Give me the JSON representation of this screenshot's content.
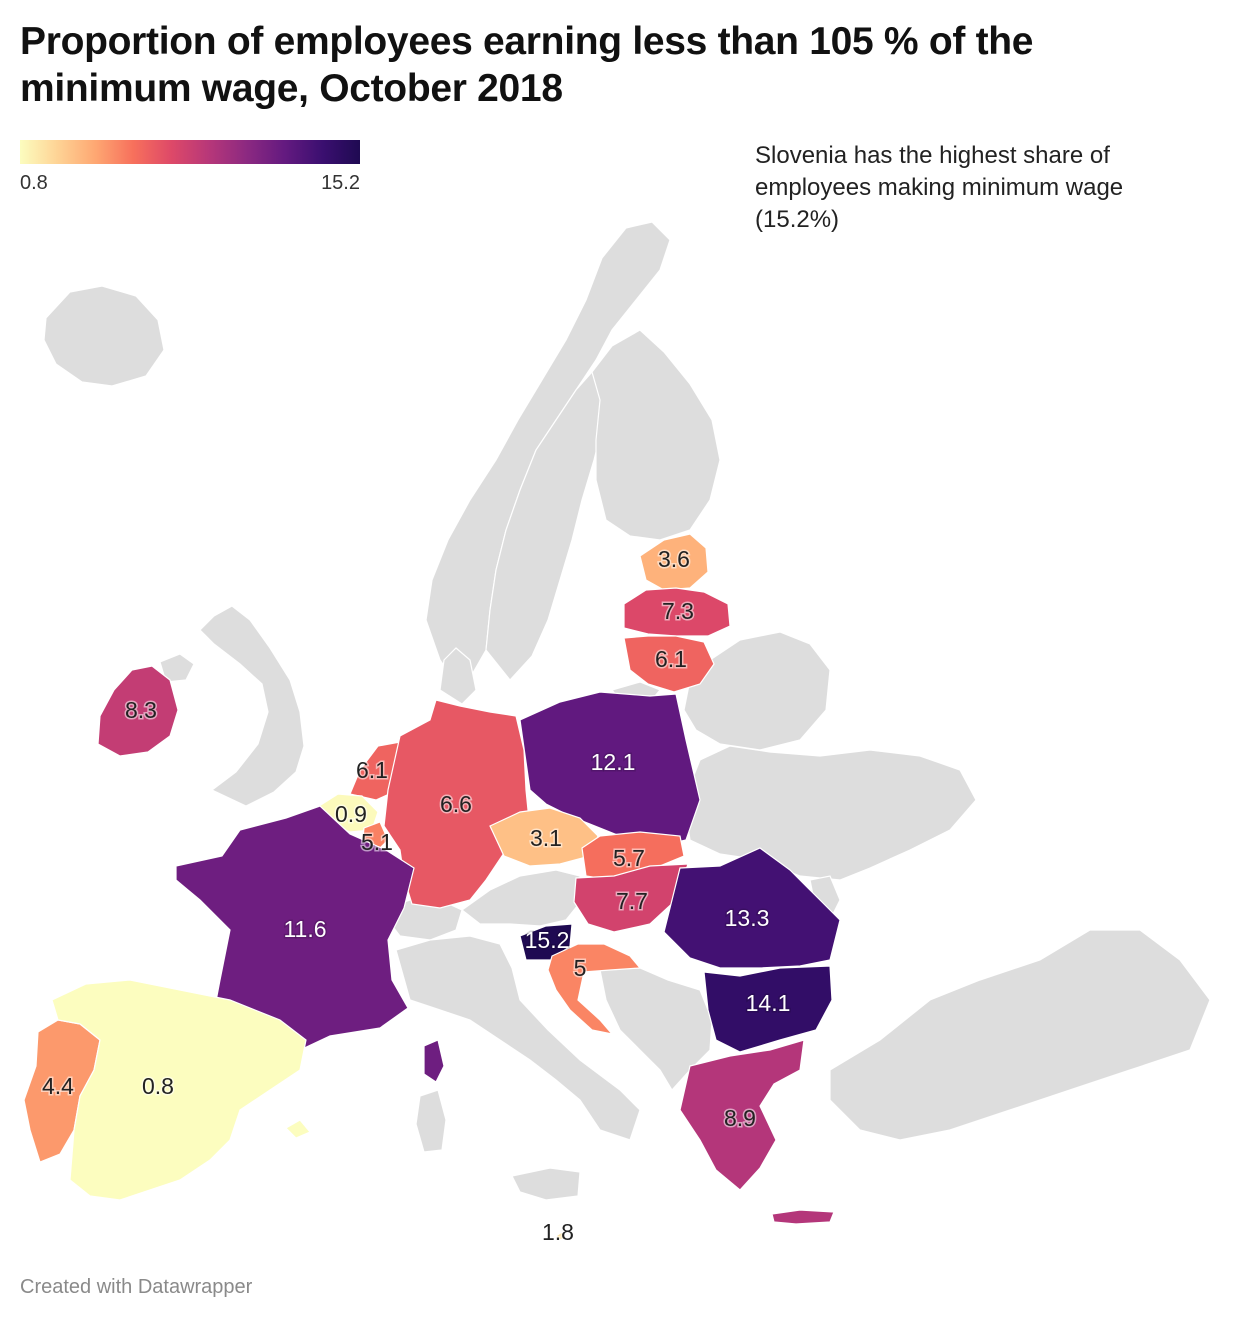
{
  "title": "Proportion of employees earning less than 105 % of the minimum wage, October 2018",
  "legend": {
    "min_label": "0.8",
    "max_label": "15.2",
    "colors": [
      "#fcfdbf",
      "#fed395",
      "#fea772",
      "#f7705c",
      "#de4968",
      "#b73779",
      "#8c2981",
      "#641a80",
      "#3b0f70",
      "#1f0a52"
    ]
  },
  "annotation": "Slovenia has the highest share of employees making minimum wage (15.2%)",
  "credit": "Created with Datawrapper",
  "no_data_color": "#dddddd",
  "countries": [
    {
      "key": "estonia",
      "name": "Estonia",
      "value": 3.6
    },
    {
      "key": "latvia",
      "name": "Latvia",
      "value": 7.3
    },
    {
      "key": "lithuania",
      "name": "Lithuania",
      "value": 6.1
    },
    {
      "key": "ireland",
      "name": "Ireland",
      "value": 8.3
    },
    {
      "key": "netherlands",
      "name": "Netherlands",
      "value": 6.1
    },
    {
      "key": "germany",
      "name": "Germany",
      "value": 6.6
    },
    {
      "key": "poland",
      "name": "Poland",
      "value": 12.1
    },
    {
      "key": "belgium",
      "name": "Belgium",
      "value": 0.9
    },
    {
      "key": "luxembourg",
      "name": "Luxembourg",
      "value": 5.1
    },
    {
      "key": "czechia",
      "name": "Czechia",
      "value": 3.1
    },
    {
      "key": "slovakia",
      "name": "Slovakia",
      "value": 5.7
    },
    {
      "key": "france",
      "name": "France",
      "value": 11.6
    },
    {
      "key": "hungary",
      "name": "Hungary",
      "value": 7.7
    },
    {
      "key": "romania",
      "name": "Romania",
      "value": 13.3
    },
    {
      "key": "slovenia",
      "name": "Slovenia",
      "value": 15.2
    },
    {
      "key": "croatia",
      "name": "Croatia",
      "value": 5
    },
    {
      "key": "bulgaria",
      "name": "Bulgaria",
      "value": 14.1
    },
    {
      "key": "portugal",
      "name": "Portugal",
      "value": 4.4
    },
    {
      "key": "spain",
      "name": "Spain",
      "value": 0.8
    },
    {
      "key": "greece",
      "name": "Greece",
      "value": 8.9
    },
    {
      "key": "malta",
      "name": "Malta",
      "value": 1.8
    }
  ]
}
